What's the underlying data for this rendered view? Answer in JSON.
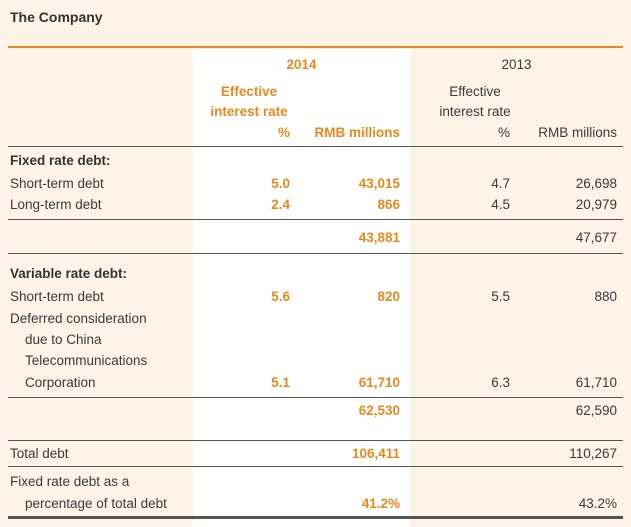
{
  "title": "The Company",
  "headers": {
    "year_2014": "2014",
    "year_2013": "2013",
    "eff_line1": "Effective",
    "eff_line2": "interest rate",
    "pct": "%",
    "rmb": "RMB millions"
  },
  "fixed": {
    "heading": "Fixed rate debt:",
    "rows": [
      {
        "label": "Short-term debt",
        "rate_2014": "5.0",
        "amt_2014": "43,015",
        "rate_2013": "4.7",
        "amt_2013": "26,698"
      },
      {
        "label": "Long-term debt",
        "rate_2014": "2.4",
        "amt_2014": "866",
        "rate_2013": "4.5",
        "amt_2013": "20,979"
      }
    ],
    "subtotal_2014": "43,881",
    "subtotal_2013": "47,677"
  },
  "variable": {
    "heading": "Variable rate debt:",
    "row1": {
      "label": "Short-term debt",
      "rate_2014": "5.6",
      "amt_2014": "820",
      "rate_2013": "5.5",
      "amt_2013": "880"
    },
    "row2": {
      "label_l1": "Deferred consideration",
      "label_l2": "due to China",
      "label_l3": "Telecommunications",
      "label_l4": "Corporation",
      "rate_2014": "5.1",
      "amt_2014": "61,710",
      "rate_2013": "6.3",
      "amt_2013": "61,710"
    },
    "subtotal_2014": "62,530",
    "subtotal_2013": "62,590"
  },
  "total": {
    "label": "Total debt",
    "amt_2014": "106,411",
    "amt_2013": "110,267"
  },
  "percentage": {
    "label_l1": "Fixed rate debt as a",
    "label_l2": "percentage of total debt",
    "pct_2014": "41.2%",
    "pct_2013": "43.2%"
  },
  "colors": {
    "accent": "#e8891f",
    "background": "#fdf3e6",
    "highlight": "#ffffff"
  }
}
